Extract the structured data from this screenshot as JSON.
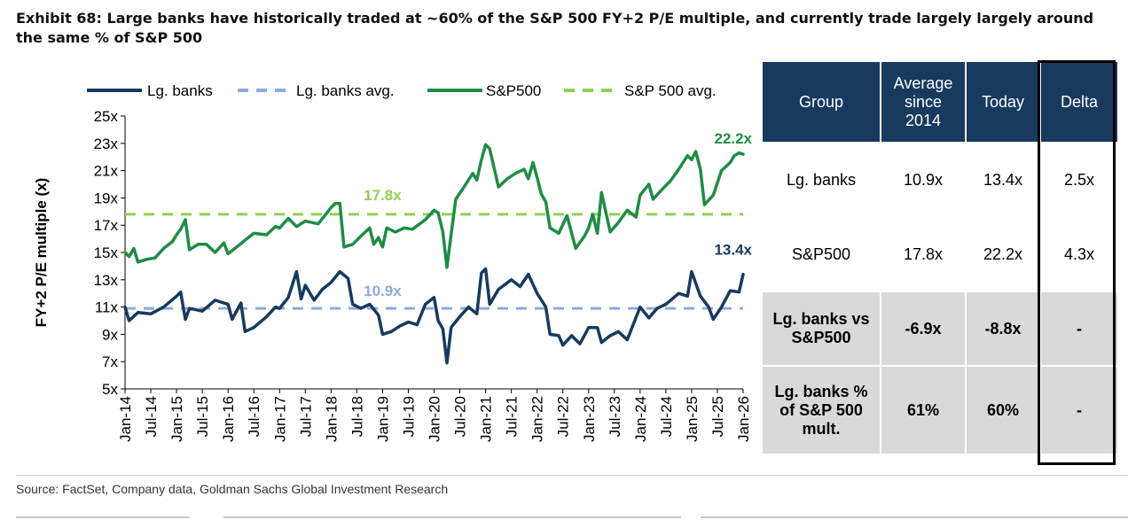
{
  "title": "Exhibit 68: Large banks have historically traded at ~60% of the S&P 500 FY+2 P/E multiple, and currently trade largely largely around the same % of S&P 500",
  "source": "Source: FactSet, Company data, Goldman Sachs Global Investment Research",
  "chart_data": {
    "type": "line",
    "ylabel": "FY+2 P/E multiple (x)",
    "xlabel": "",
    "ylim": [
      5,
      25
    ],
    "y_ticks": [
      "25x",
      "23x",
      "21x",
      "19x",
      "17x",
      "15x",
      "13x",
      "11x",
      "9x",
      "7x",
      "5x"
    ],
    "y_tick_values": [
      25,
      23,
      21,
      19,
      17,
      15,
      13,
      11,
      9,
      7,
      5
    ],
    "x_range": [
      2014.0,
      2026.0
    ],
    "x_ticks": [
      "Jan-14",
      "Jul-14",
      "Jan-15",
      "Jul-15",
      "Jan-16",
      "Jul-16",
      "Jan-17",
      "Jul-17",
      "Jan-18",
      "Jul-18",
      "Jan-19",
      "Jul-19",
      "Jan-20",
      "Jul-20",
      "Jan-21",
      "Jul-21",
      "Jan-22",
      "Jul-22",
      "Jan-23",
      "Jul-23",
      "Jan-24",
      "Jul-24",
      "Jan-25",
      "Jul-25",
      "Jan-26"
    ],
    "legend": [
      "Lg. banks",
      "Lg. banks avg.",
      "S&P500",
      "S&P 500 avg."
    ],
    "series": [
      {
        "name": "Lg. banks",
        "color": "#173a5e",
        "points": [
          [
            2014.0,
            11.0
          ],
          [
            2014.08,
            10.0
          ],
          [
            2014.25,
            10.6
          ],
          [
            2014.5,
            10.5
          ],
          [
            2014.75,
            11.0
          ],
          [
            2015.0,
            11.8
          ],
          [
            2015.08,
            12.1
          ],
          [
            2015.17,
            10.1
          ],
          [
            2015.25,
            10.9
          ],
          [
            2015.5,
            10.7
          ],
          [
            2015.75,
            11.5
          ],
          [
            2016.0,
            11.2
          ],
          [
            2016.08,
            10.1
          ],
          [
            2016.25,
            11.3
          ],
          [
            2016.33,
            9.2
          ],
          [
            2016.5,
            9.5
          ],
          [
            2016.75,
            10.3
          ],
          [
            2016.92,
            11.0
          ],
          [
            2017.0,
            10.9
          ],
          [
            2017.17,
            11.7
          ],
          [
            2017.33,
            13.6
          ],
          [
            2017.42,
            11.6
          ],
          [
            2017.5,
            12.6
          ],
          [
            2017.67,
            11.5
          ],
          [
            2017.83,
            12.3
          ],
          [
            2018.0,
            12.8
          ],
          [
            2018.17,
            13.6
          ],
          [
            2018.33,
            13.1
          ],
          [
            2018.42,
            11.2
          ],
          [
            2018.58,
            10.9
          ],
          [
            2018.75,
            11.2
          ],
          [
            2018.92,
            10.4
          ],
          [
            2019.0,
            9.0
          ],
          [
            2019.17,
            9.2
          ],
          [
            2019.33,
            9.6
          ],
          [
            2019.5,
            9.9
          ],
          [
            2019.67,
            9.7
          ],
          [
            2019.83,
            11.2
          ],
          [
            2020.0,
            11.7
          ],
          [
            2020.08,
            10.0
          ],
          [
            2020.17,
            9.4
          ],
          [
            2020.25,
            6.9
          ],
          [
            2020.33,
            9.5
          ],
          [
            2020.5,
            10.3
          ],
          [
            2020.67,
            11.0
          ],
          [
            2020.83,
            10.5
          ],
          [
            2020.92,
            13.5
          ],
          [
            2021.0,
            13.8
          ],
          [
            2021.08,
            11.2
          ],
          [
            2021.25,
            12.3
          ],
          [
            2021.5,
            13.0
          ],
          [
            2021.67,
            12.5
          ],
          [
            2021.83,
            13.4
          ],
          [
            2022.0,
            12.0
          ],
          [
            2022.17,
            11.0
          ],
          [
            2022.25,
            9.0
          ],
          [
            2022.42,
            8.9
          ],
          [
            2022.5,
            8.2
          ],
          [
            2022.67,
            8.9
          ],
          [
            2022.83,
            8.3
          ],
          [
            2023.0,
            9.5
          ],
          [
            2023.17,
            9.5
          ],
          [
            2023.25,
            8.4
          ],
          [
            2023.42,
            8.9
          ],
          [
            2023.58,
            9.2
          ],
          [
            2023.75,
            8.6
          ],
          [
            2024.0,
            11.0
          ],
          [
            2024.17,
            10.2
          ],
          [
            2024.33,
            10.9
          ],
          [
            2024.5,
            11.2
          ],
          [
            2024.75,
            12.0
          ],
          [
            2024.92,
            11.8
          ],
          [
            2025.0,
            13.6
          ],
          [
            2025.17,
            11.8
          ],
          [
            2025.33,
            11.0
          ],
          [
            2025.42,
            10.1
          ],
          [
            2025.58,
            11.0
          ],
          [
            2025.75,
            12.2
          ],
          [
            2025.92,
            12.1
          ],
          [
            2026.0,
            13.4
          ]
        ]
      },
      {
        "name": "Lg. banks avg.",
        "color": "#8eaadb",
        "dashed": true,
        "points": [
          [
            2014.0,
            10.9
          ],
          [
            2026.0,
            10.9
          ]
        ]
      },
      {
        "name": "S&P500",
        "color": "#1f8c45",
        "points": [
          [
            2014.0,
            15.0
          ],
          [
            2014.08,
            14.7
          ],
          [
            2014.17,
            15.3
          ],
          [
            2014.25,
            14.3
          ],
          [
            2014.42,
            14.5
          ],
          [
            2014.58,
            14.6
          ],
          [
            2014.75,
            15.3
          ],
          [
            2014.92,
            15.8
          ],
          [
            2015.0,
            16.3
          ],
          [
            2015.08,
            16.7
          ],
          [
            2015.17,
            17.4
          ],
          [
            2015.25,
            15.2
          ],
          [
            2015.42,
            15.6
          ],
          [
            2015.58,
            15.6
          ],
          [
            2015.75,
            15.0
          ],
          [
            2015.92,
            15.7
          ],
          [
            2016.0,
            14.9
          ],
          [
            2016.17,
            15.4
          ],
          [
            2016.33,
            15.9
          ],
          [
            2016.5,
            16.4
          ],
          [
            2016.75,
            16.3
          ],
          [
            2016.92,
            16.9
          ],
          [
            2017.0,
            16.8
          ],
          [
            2017.17,
            17.5
          ],
          [
            2017.33,
            16.9
          ],
          [
            2017.5,
            17.3
          ],
          [
            2017.75,
            17.1
          ],
          [
            2017.92,
            17.9
          ],
          [
            2018.0,
            18.3
          ],
          [
            2018.08,
            18.6
          ],
          [
            2018.17,
            18.6
          ],
          [
            2018.25,
            15.4
          ],
          [
            2018.42,
            15.6
          ],
          [
            2018.58,
            16.2
          ],
          [
            2018.75,
            16.8
          ],
          [
            2018.83,
            15.6
          ],
          [
            2018.92,
            16.1
          ],
          [
            2019.0,
            15.4
          ],
          [
            2019.08,
            16.8
          ],
          [
            2019.25,
            16.5
          ],
          [
            2019.42,
            16.8
          ],
          [
            2019.58,
            16.7
          ],
          [
            2019.83,
            17.4
          ],
          [
            2020.0,
            18.1
          ],
          [
            2020.08,
            17.9
          ],
          [
            2020.17,
            16.5
          ],
          [
            2020.25,
            13.9
          ],
          [
            2020.33,
            16.3
          ],
          [
            2020.42,
            18.9
          ],
          [
            2020.58,
            19.8
          ],
          [
            2020.75,
            20.8
          ],
          [
            2020.83,
            20.3
          ],
          [
            2020.92,
            21.8
          ],
          [
            2021.0,
            22.9
          ],
          [
            2021.08,
            22.6
          ],
          [
            2021.25,
            19.8
          ],
          [
            2021.42,
            20.4
          ],
          [
            2021.58,
            20.8
          ],
          [
            2021.75,
            21.1
          ],
          [
            2021.83,
            20.4
          ],
          [
            2021.92,
            21.6
          ],
          [
            2022.0,
            20.5
          ],
          [
            2022.08,
            19.3
          ],
          [
            2022.17,
            18.7
          ],
          [
            2022.25,
            16.8
          ],
          [
            2022.42,
            16.4
          ],
          [
            2022.58,
            17.7
          ],
          [
            2022.75,
            15.3
          ],
          [
            2022.92,
            16.2
          ],
          [
            2023.0,
            16.8
          ],
          [
            2023.08,
            17.8
          ],
          [
            2023.17,
            16.4
          ],
          [
            2023.25,
            19.4
          ],
          [
            2023.42,
            16.5
          ],
          [
            2023.58,
            17.2
          ],
          [
            2023.75,
            18.1
          ],
          [
            2023.92,
            17.6
          ],
          [
            2024.0,
            19.2
          ],
          [
            2024.17,
            20.0
          ],
          [
            2024.25,
            18.9
          ],
          [
            2024.42,
            19.6
          ],
          [
            2024.58,
            20.2
          ],
          [
            2024.75,
            21.1
          ],
          [
            2024.92,
            22.1
          ],
          [
            2025.0,
            21.8
          ],
          [
            2025.08,
            22.4
          ],
          [
            2025.17,
            21.1
          ],
          [
            2025.25,
            18.5
          ],
          [
            2025.42,
            19.2
          ],
          [
            2025.58,
            21.0
          ],
          [
            2025.75,
            21.6
          ],
          [
            2025.83,
            22.1
          ],
          [
            2025.92,
            22.3
          ],
          [
            2026.0,
            22.2
          ]
        ]
      },
      {
        "name": "S&P 500 avg.",
        "color": "#8fd14f",
        "dashed": true,
        "points": [
          [
            2014.0,
            17.8
          ],
          [
            2026.0,
            17.8
          ]
        ]
      }
    ],
    "annotations": [
      {
        "text": "22.2x",
        "color": "#1f8c45",
        "x": 2026.0,
        "y": 22.2
      },
      {
        "text": "13.4x",
        "color": "#173a5e",
        "x": 2026.0,
        "y": 13.4
      },
      {
        "text": "17.8x",
        "color": "#8fd14f",
        "x": 2019.0,
        "y": 17.8
      },
      {
        "text": "10.9x",
        "color": "#8eaadb",
        "x": 2019.0,
        "y": 10.9
      }
    ]
  },
  "table": {
    "headers": [
      "Group",
      "Average since 2014",
      "Today",
      "Delta"
    ],
    "rows": [
      {
        "group": "Lg. banks",
        "avg": "10.9x",
        "today": "13.4x",
        "delta": "2.5x"
      },
      {
        "group": "S&P500",
        "avg": "17.8x",
        "today": "22.2x",
        "delta": "4.3x"
      },
      {
        "group": "Lg. banks vs S&P500",
        "avg": "-6.9x",
        "today": "-8.8x",
        "delta": "-"
      },
      {
        "group": "Lg. banks % of S&P 500 mult.",
        "avg": "61%",
        "today": "60%",
        "delta": "-"
      }
    ]
  }
}
